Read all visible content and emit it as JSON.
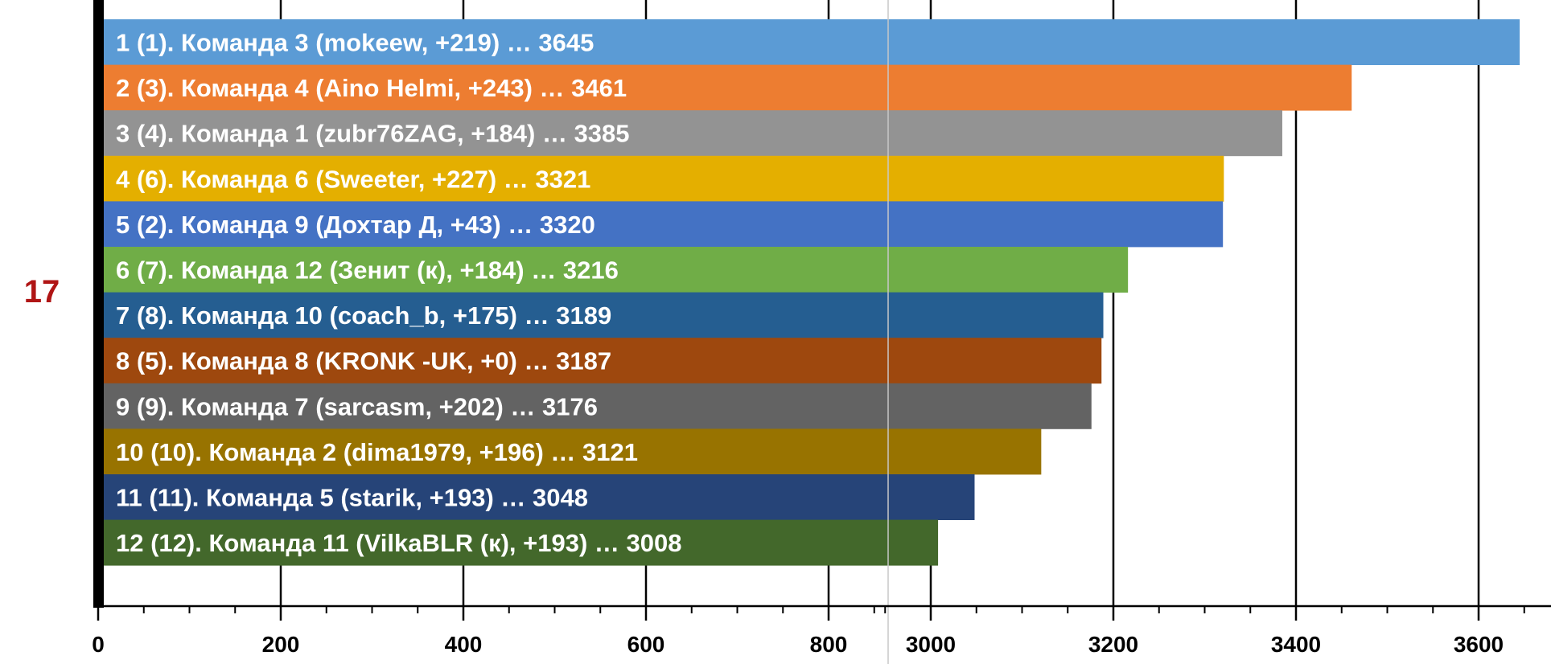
{
  "round_label": "17",
  "colors": {
    "round_label": "#b01515",
    "axis": "#000000",
    "grid": "#000000",
    "break_line": "#c8c8c8",
    "bar_text": "#ffffff"
  },
  "chart_data": {
    "type": "bar",
    "orientation": "horizontal",
    "axis_break": {
      "from": 860,
      "to": 2900
    },
    "xlim": [
      0,
      3650
    ],
    "x_ticks": [
      0,
      200,
      400,
      600,
      800,
      3000,
      3200,
      3400,
      3600
    ],
    "x_tick_labels": [
      "0",
      "200",
      "400",
      "600",
      "800",
      "3000",
      "3200",
      "3400",
      "3600"
    ],
    "grid": true,
    "categories": [
      "1 (1). Команда 3 (mokeew, +219) … 3645",
      "2 (3). Команда 4 (Aino Helmi, +243) … 3461",
      "3 (4). Команда 1 (zubr76ZAG, +184) … 3385",
      "4 (6). Команда 6 (Sweeter, +227) … 3321",
      "5 (2). Команда 9 (Дохтар Д, +43) … 3320",
      "6 (7). Команда 12 (Зенит (к), +184) … 3216",
      "7 (8). Команда 10 (coach_b, +175) … 3189",
      "8 (5). Команда 8 (KRONK -UK, +0) … 3187",
      "9 (9). Команда 7 (sarcasm, +202) … 3176",
      "10 (10). Команда 2 (dima1979, +196) … 3121",
      "11 (11). Команда 5 (starik, +193) … 3048",
      "12 (12). Команда 11 (VilkaBLR (к), +193) … 3008"
    ],
    "values": [
      3645,
      3461,
      3385,
      3321,
      3320,
      3216,
      3189,
      3187,
      3176,
      3121,
      3048,
      3008
    ],
    "bar_colors": [
      "#5b9bd5",
      "#ed7d31",
      "#939393",
      "#e4af00",
      "#4472c4",
      "#70ad47",
      "#255e91",
      "#9e480e",
      "#636363",
      "#987300",
      "#264478",
      "#43682b"
    ]
  }
}
